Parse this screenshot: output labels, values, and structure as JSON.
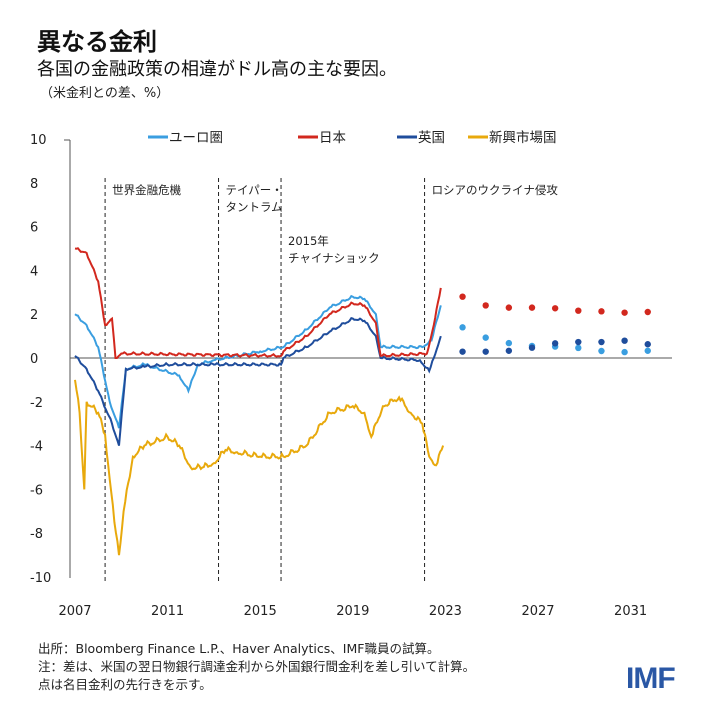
{
  "header": {
    "title": "異なる金利",
    "subtitle": "各国の金融政策の相違がドル高の主な要因。",
    "unit": "（米金利との差、%）"
  },
  "footer": {
    "source": "出所：Bloomberg Finance L.P.、Haver Analytics、IMF職員の試算。",
    "note1": "注：差は、米国の翌日物銀行調達金利から外国銀行間金利を差し引いて計算。",
    "note2": "点は名目金利の先行きを示す。",
    "logo": "IMF"
  },
  "chart_data": {
    "type": "line",
    "title": "異なる金利",
    "ylabel": "（米金利との差、%）",
    "xlim": [
      2007,
      2033
    ],
    "ylim": [
      -10,
      10
    ],
    "yticks": [
      10,
      8,
      6,
      4,
      2,
      0,
      -2,
      -4,
      -6,
      -8,
      -10
    ],
    "xticks": [
      2007,
      2011,
      2015,
      2019,
      2023,
      2027,
      2031
    ],
    "grid": false,
    "legend": "top",
    "annotations": [
      {
        "x": 2008.3,
        "label": [
          "世界金融危機"
        ]
      },
      {
        "x": 2013.2,
        "label": [
          "テイパー・",
          "タントラム"
        ]
      },
      {
        "x": 2015.9,
        "label": [
          "2015年",
          "チャイナショック"
        ]
      },
      {
        "x": 2022.1,
        "label": [
          "ロシアのウクライナ侵攻"
        ]
      }
    ],
    "series": [
      {
        "name": "ユーロ圏",
        "color": "#3a9ee0",
        "x": [
          2007,
          2007.5,
          2008,
          2008.5,
          2008.9,
          2009.2,
          2010,
          2011.5,
          2011.9,
          2012.3,
          2013,
          2015,
          2016,
          2017,
          2018,
          2019,
          2019.5,
          2020,
          2020.2,
          2022,
          2022.4,
          2022.8
        ],
        "y": [
          2.0,
          1.5,
          0.5,
          -2.0,
          -3.2,
          -0.5,
          -0.3,
          -0.8,
          -1.5,
          -0.3,
          -0.1,
          0.3,
          0.5,
          1.3,
          2.3,
          2.8,
          2.7,
          2.0,
          0.5,
          0.5,
          0.8,
          2.4
        ],
        "forecast_x": [
          2024,
          2025,
          2026,
          2027,
          2028,
          2029,
          2030,
          2031,
          2032
        ],
        "forecast_y": [
          1.4,
          0.93,
          0.68,
          0.55,
          0.52,
          0.46,
          0.32,
          0.27,
          0.33
        ]
      },
      {
        "name": "日本",
        "color": "#d2281e",
        "x": [
          2007,
          2007.5,
          2008,
          2008.3,
          2008.6,
          2008.75,
          2009,
          2015.9,
          2016,
          2017,
          2018,
          2019,
          2019.5,
          2020,
          2020.2,
          2022.2,
          2022.5,
          2022.8
        ],
        "y": [
          5.0,
          4.8,
          3.5,
          1.5,
          1.8,
          0.0,
          0.2,
          0.1,
          0.3,
          1.0,
          2.0,
          2.5,
          2.4,
          1.6,
          0.1,
          0.2,
          1.5,
          3.2
        ],
        "forecast_x": [
          2024,
          2025,
          2026,
          2027,
          2028,
          2029,
          2030,
          2031,
          2032
        ],
        "forecast_y": [
          2.8,
          2.4,
          2.3,
          2.3,
          2.27,
          2.16,
          2.13,
          2.07,
          2.1
        ]
      },
      {
        "name": "英国",
        "color": "#1f4d9c",
        "x": [
          2007,
          2007.5,
          2008,
          2008.6,
          2008.9,
          2009.2,
          2010,
          2011,
          2013,
          2015.9,
          2016,
          2017,
          2018,
          2019,
          2019.5,
          2020,
          2020.2,
          2021.9,
          2022.3,
          2022.5,
          2022.8
        ],
        "y": [
          0.1,
          -0.5,
          -1.5,
          -3.0,
          -4.0,
          -0.5,
          -0.4,
          -0.3,
          -0.3,
          -0.3,
          0.0,
          0.5,
          1.2,
          1.8,
          1.7,
          1.0,
          0.0,
          -0.1,
          -0.6,
          0.0,
          1.0
        ],
        "forecast_x": [
          2024,
          2025,
          2026,
          2027,
          2028,
          2029,
          2030,
          2031,
          2032
        ],
        "forecast_y": [
          0.29,
          0.29,
          0.33,
          0.47,
          0.67,
          0.73,
          0.73,
          0.79,
          0.63
        ]
      },
      {
        "name": "新興市場国",
        "color": "#e8a90c",
        "x": [
          2007,
          2007.2,
          2007.4,
          2007.5,
          2008,
          2008.3,
          2008.7,
          2008.9,
          2009.1,
          2009.5,
          2010,
          2011,
          2011.5,
          2012,
          2012.5,
          2013,
          2013.5,
          2014,
          2015,
          2016,
          2017,
          2018,
          2019,
          2019.5,
          2019.8,
          2020.3,
          2021,
          2021.5,
          2022,
          2022.3,
          2022.6,
          2022.9
        ],
        "y": [
          -1.0,
          -2.5,
          -6.0,
          -2.0,
          -2.5,
          -3.5,
          -7.5,
          -9.0,
          -7.0,
          -4.5,
          -4.0,
          -3.6,
          -4.0,
          -5.0,
          -5.0,
          -4.8,
          -4.2,
          -4.3,
          -4.5,
          -4.5,
          -4.0,
          -2.5,
          -2.2,
          -2.5,
          -3.6,
          -2.2,
          -1.8,
          -2.5,
          -3.0,
          -4.5,
          -4.9,
          -4.0
        ]
      }
    ]
  }
}
